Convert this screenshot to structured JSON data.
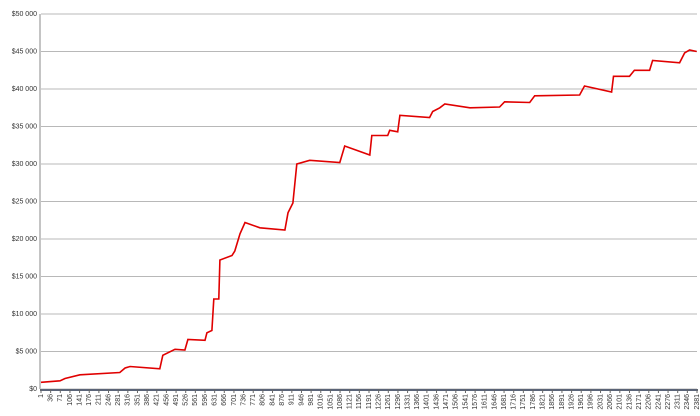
{
  "chart_data": {
    "type": "line",
    "color": "#e00000",
    "grid": true,
    "x": [
      1,
      70,
      88,
      142,
      287,
      306,
      324,
      432,
      443,
      487,
      523,
      534,
      596,
      603,
      621,
      628,
      646,
      650,
      694,
      704,
      723,
      741,
      795,
      886,
      897,
      915,
      929,
      976,
      1085,
      1103,
      1194,
      1201,
      1259,
      1266,
      1295,
      1303,
      1411,
      1422,
      1448,
      1466,
      1557,
      1665,
      1683,
      1774,
      1792,
      1955,
      1973,
      2071,
      2078,
      2136,
      2154,
      2209,
      2220,
      2318,
      2336,
      2354,
      2380
    ],
    "values": [
      900,
      1100,
      1400,
      1900,
      2200,
      2800,
      3000,
      2700,
      4500,
      5300,
      5200,
      6600,
      6500,
      7500,
      7800,
      12000,
      12000,
      17200,
      17800,
      18400,
      20700,
      22200,
      21500,
      21200,
      23500,
      24800,
      30000,
      30500,
      30200,
      32400,
      31200,
      33800,
      33800,
      34500,
      34300,
      36500,
      36200,
      37000,
      37500,
      38000,
      37500,
      37600,
      38300,
      38200,
      39100,
      39200,
      40400,
      39600,
      41700,
      41700,
      42500,
      42500,
      43800,
      43500,
      44800,
      45200,
      45000
    ],
    "xlim": [
      1,
      2381
    ],
    "xticks": [
      1,
      36,
      71,
      106,
      141,
      176,
      211,
      246,
      281,
      316,
      351,
      386,
      421,
      456,
      491,
      526,
      561,
      596,
      631,
      666,
      701,
      736,
      771,
      806,
      841,
      876,
      911,
      946,
      981,
      1016,
      1051,
      1086,
      1121,
      1156,
      1191,
      1226,
      1261,
      1296,
      1331,
      1366,
      1401,
      1436,
      1471,
      1506,
      1541,
      1576,
      1611,
      1646,
      1681,
      1716,
      1751,
      1786,
      1821,
      1856,
      1891,
      1926,
      1961,
      1996,
      2031,
      2066,
      2101,
      2136,
      2171,
      2206,
      2241,
      2276,
      2311,
      2346,
      2381
    ],
    "ylim": [
      0,
      50000
    ],
    "yticks": [
      {
        "value": 0,
        "label": "$0"
      },
      {
        "value": 5000,
        "label": "$5 000"
      },
      {
        "value": 10000,
        "label": "$10 000"
      },
      {
        "value": 15000,
        "label": "$15 000"
      },
      {
        "value": 20000,
        "label": "$20 000"
      },
      {
        "value": 25000,
        "label": "$25 000"
      },
      {
        "value": 30000,
        "label": "$30 000"
      },
      {
        "value": 35000,
        "label": "$35 000"
      },
      {
        "value": 40000,
        "label": "$40 000"
      },
      {
        "value": 45000,
        "label": "$45 000"
      },
      {
        "value": 50000,
        "label": "$50 000"
      }
    ]
  }
}
